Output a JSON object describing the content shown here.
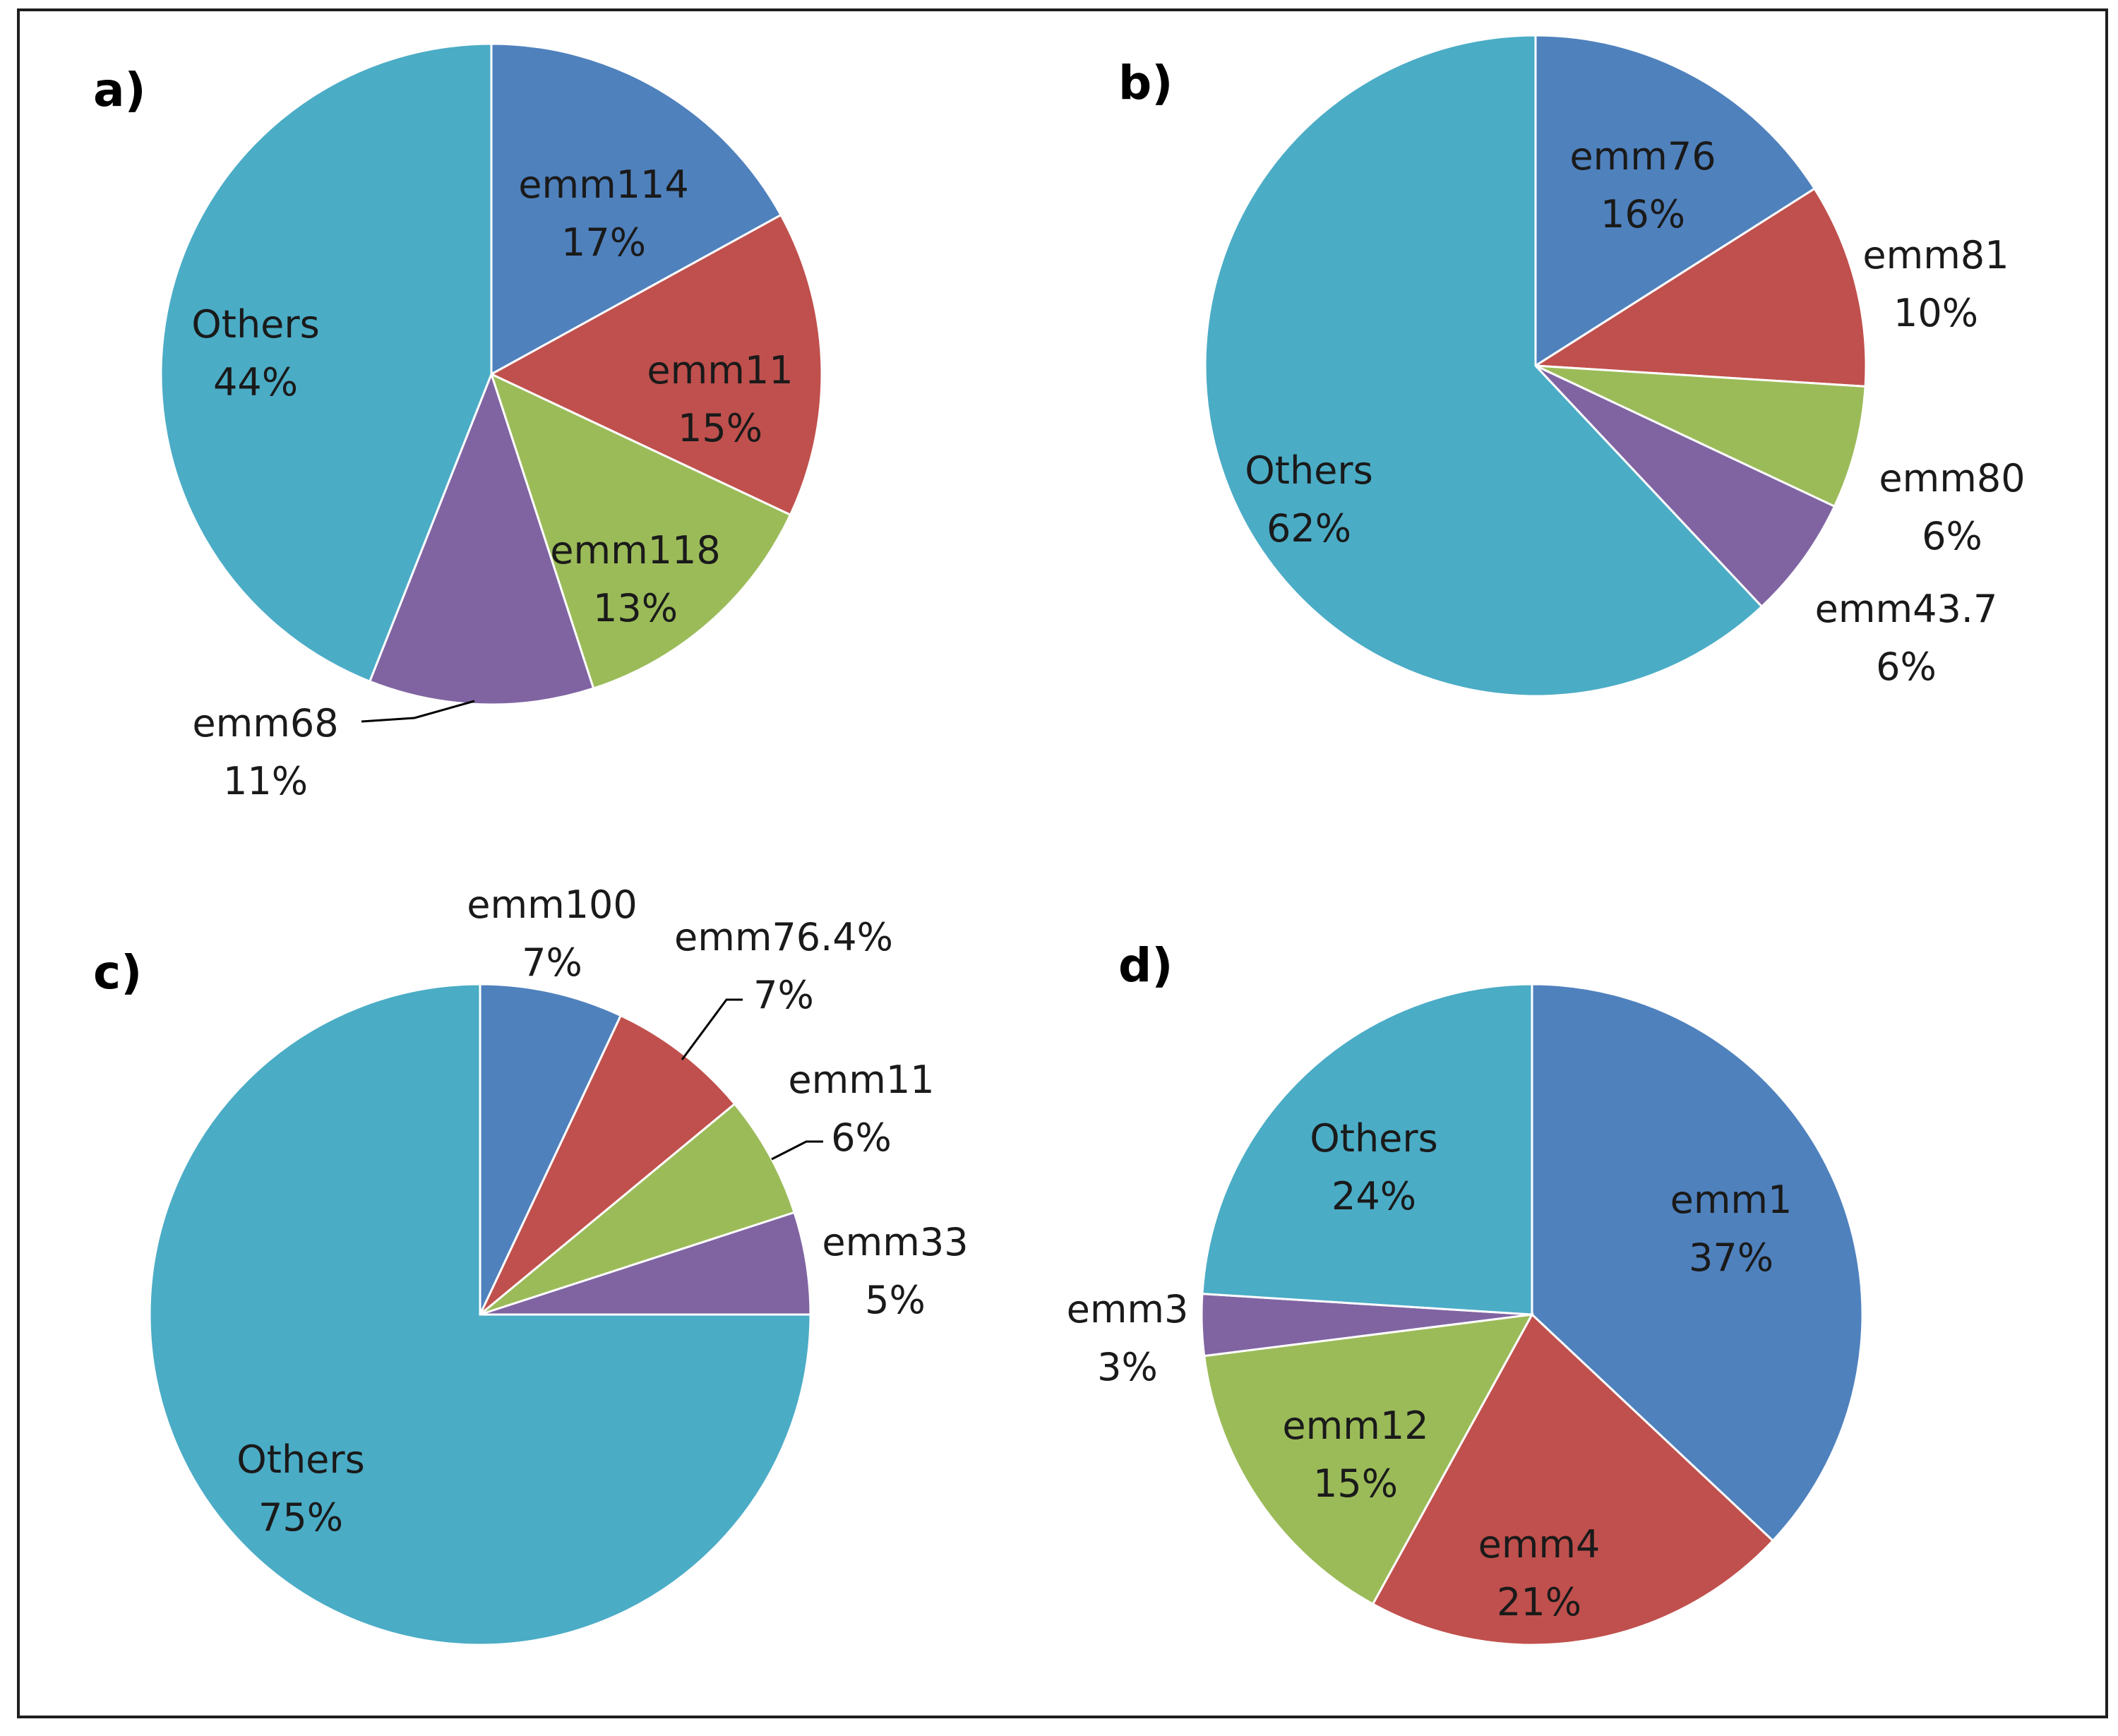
{
  "chart_data": [
    {
      "type": "pie",
      "panel_label": "a)",
      "slices": [
        {
          "label": "emm114",
          "value": 17,
          "value_label": "17%",
          "color": "#4F81BD"
        },
        {
          "label": "emm11",
          "value": 15,
          "value_label": "15%",
          "color": "#C0504D"
        },
        {
          "label": "emm118",
          "value": 13,
          "value_label": "13%",
          "color": "#9BBB59"
        },
        {
          "label": "emm68",
          "value": 11,
          "value_label": "11%",
          "color": "#8064A2"
        },
        {
          "label": "Others",
          "value": 44,
          "value_label": "44%",
          "color": "#4BACC6"
        }
      ]
    },
    {
      "type": "pie",
      "panel_label": "b)",
      "slices": [
        {
          "label": "emm76",
          "value": 16,
          "value_label": "16%",
          "color": "#4F81BD"
        },
        {
          "label": "emm81",
          "value": 10,
          "value_label": "10%",
          "color": "#C0504D"
        },
        {
          "label": "emm80",
          "value": 6,
          "value_label": "6%",
          "color": "#9BBB59"
        },
        {
          "label": "emm43.7",
          "value": 6,
          "value_label": "6%",
          "color": "#8064A2"
        },
        {
          "label": "Others",
          "value": 62,
          "value_label": "62%",
          "color": "#4BACC6"
        }
      ]
    },
    {
      "type": "pie",
      "panel_label": "c)",
      "slices": [
        {
          "label": "emm100",
          "value": 7,
          "value_label": "7%",
          "color": "#4F81BD"
        },
        {
          "label": "emm76.4%",
          "value": 7,
          "value_label": "7%",
          "color": "#C0504D"
        },
        {
          "label": "emm11",
          "value": 6,
          "value_label": "6%",
          "color": "#9BBB59"
        },
        {
          "label": "emm33",
          "value": 5,
          "value_label": "5%",
          "color": "#8064A2"
        },
        {
          "label": "Others",
          "value": 75,
          "value_label": "75%",
          "color": "#4BACC6"
        }
      ]
    },
    {
      "type": "pie",
      "panel_label": "d)",
      "slices": [
        {
          "label": "emm1",
          "value": 37,
          "value_label": "37%",
          "color": "#4F81BD"
        },
        {
          "label": "emm4",
          "value": 21,
          "value_label": "21%",
          "color": "#C0504D"
        },
        {
          "label": "emm12",
          "value": 15,
          "value_label": "15%",
          "color": "#9BBB59"
        },
        {
          "label": "emm3",
          "value": 3,
          "value_label": "3%",
          "color": "#8064A2"
        },
        {
          "label": "Others",
          "value": 24,
          "value_label": "24%",
          "color": "#4BACC6"
        }
      ]
    }
  ]
}
